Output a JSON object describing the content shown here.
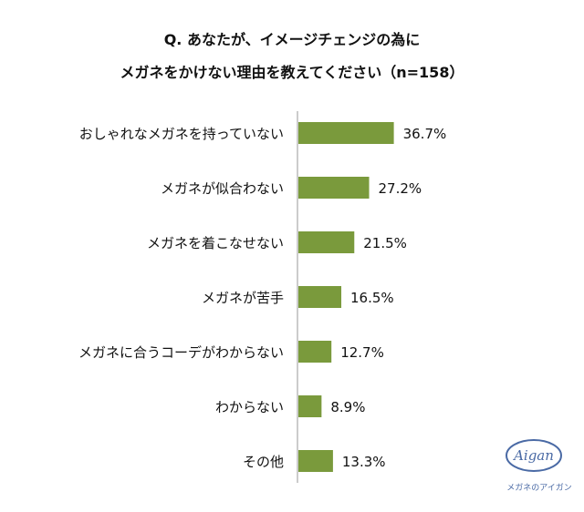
{
  "title_line1": "Q. あなたが、イメージチェンジの為に",
  "title_line2": "メガネをかけない理由を教えてください（n=158）",
  "chart_data": {
    "type": "bar",
    "orientation": "horizontal",
    "title": "Q. あなたが、イメージチェンジの為に メガネをかけない理由を教えてください（n=158）",
    "categories": [
      "おしゃれなメガネを持っていない",
      "メガネが似合わない",
      "メガネを着こなせない",
      "メガネが苦手",
      "メガネに合うコーデがわからない",
      "わからない",
      "その他"
    ],
    "values": [
      36.7,
      27.2,
      21.5,
      16.5,
      12.7,
      8.9,
      13.3
    ],
    "value_labels": [
      "36.7%",
      "27.2%",
      "21.5%",
      "16.5%",
      "12.7%",
      "8.9%",
      "13.3%"
    ],
    "unit": "%",
    "bar_color": "#7a9a3c",
    "xlim": [
      0,
      100
    ],
    "grid": false,
    "legend": "none"
  },
  "logo": {
    "text": "Aigan",
    "caption": "メガネのアイガン",
    "color": "#4a6aa5"
  }
}
